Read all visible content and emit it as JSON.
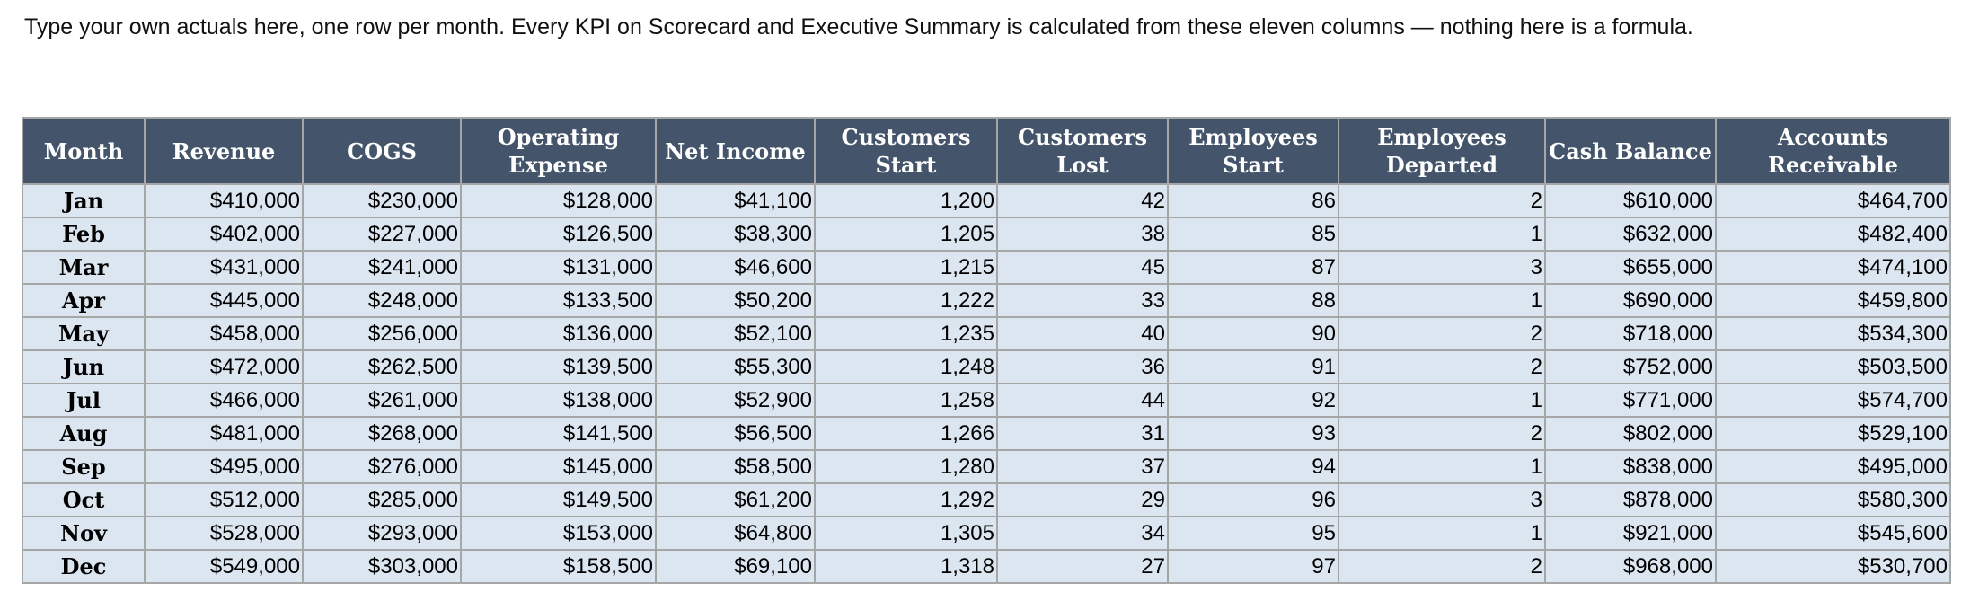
{
  "instruction": "Type your own actuals here, one row per month. Every KPI on Scorecard and Executive Summary is calculated from these eleven columns — nothing here is a formula.",
  "table": {
    "headers": [
      [
        "Month"
      ],
      [
        "Revenue"
      ],
      [
        "COGS"
      ],
      [
        "Operating",
        "Expense"
      ],
      [
        "Net Income"
      ],
      [
        "Customers Start"
      ],
      [
        "Customers",
        "Lost"
      ],
      [
        "Employees",
        "Start"
      ],
      [
        "Employees",
        "Departed"
      ],
      [
        "Cash Balance"
      ],
      [
        "Accounts",
        "Receivable"
      ]
    ],
    "rows": [
      [
        "Jan",
        "$410,000",
        "$230,000",
        "$128,000",
        "$41,100",
        "1,200",
        "42",
        "86",
        "2",
        "$610,000",
        "$464,700"
      ],
      [
        "Feb",
        "$402,000",
        "$227,000",
        "$126,500",
        "$38,300",
        "1,205",
        "38",
        "85",
        "1",
        "$632,000",
        "$482,400"
      ],
      [
        "Mar",
        "$431,000",
        "$241,000",
        "$131,000",
        "$46,600",
        "1,215",
        "45",
        "87",
        "3",
        "$655,000",
        "$474,100"
      ],
      [
        "Apr",
        "$445,000",
        "$248,000",
        "$133,500",
        "$50,200",
        "1,222",
        "33",
        "88",
        "1",
        "$690,000",
        "$459,800"
      ],
      [
        "May",
        "$458,000",
        "$256,000",
        "$136,000",
        "$52,100",
        "1,235",
        "40",
        "90",
        "2",
        "$718,000",
        "$534,300"
      ],
      [
        "Jun",
        "$472,000",
        "$262,500",
        "$139,500",
        "$55,300",
        "1,248",
        "36",
        "91",
        "2",
        "$752,000",
        "$503,500"
      ],
      [
        "Jul",
        "$466,000",
        "$261,000",
        "$138,000",
        "$52,900",
        "1,258",
        "44",
        "92",
        "1",
        "$771,000",
        "$574,700"
      ],
      [
        "Aug",
        "$481,000",
        "$268,000",
        "$141,500",
        "$56,500",
        "1,266",
        "31",
        "93",
        "2",
        "$802,000",
        "$529,100"
      ],
      [
        "Sep",
        "$495,000",
        "$276,000",
        "$145,000",
        "$58,500",
        "1,280",
        "37",
        "94",
        "1",
        "$838,000",
        "$495,000"
      ],
      [
        "Oct",
        "$512,000",
        "$285,000",
        "$149,500",
        "$61,200",
        "1,292",
        "29",
        "96",
        "3",
        "$878,000",
        "$580,300"
      ],
      [
        "Nov",
        "$528,000",
        "$293,000",
        "$153,000",
        "$64,800",
        "1,305",
        "34",
        "95",
        "1",
        "$921,000",
        "$545,600"
      ],
      [
        "Dec",
        "$549,000",
        "$303,000",
        "$158,500",
        "$69,100",
        "1,318",
        "27",
        "97",
        "2",
        "$968,000",
        "$530,700"
      ]
    ]
  },
  "colors": {
    "header_bg": "#44546a",
    "header_text": "#ffffff",
    "cell_bg": "#dce6f1",
    "border": "#a6a6a6"
  }
}
